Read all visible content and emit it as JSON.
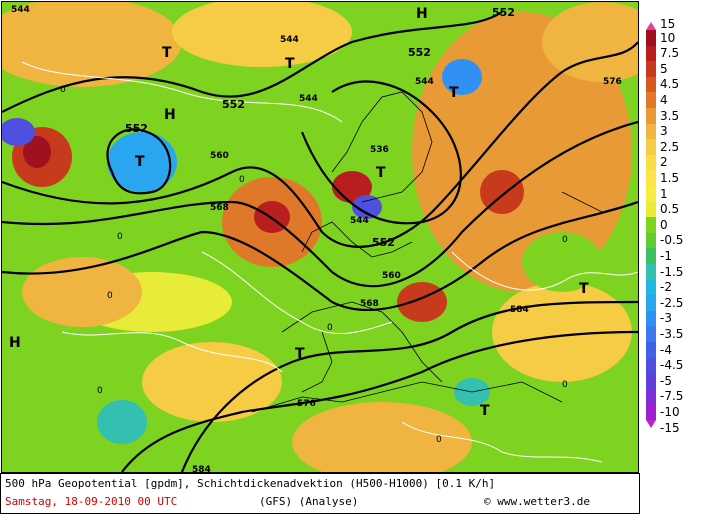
{
  "map": {
    "high_label": "H",
    "low_label": "T",
    "contour_labels": [
      "552",
      "552",
      "552",
      "552",
      "552",
      "544",
      "544",
      "544",
      "544",
      "544",
      "536",
      "560",
      "560",
      "568",
      "568",
      "576",
      "576",
      "584",
      "584"
    ],
    "advection_zero_label": "0"
  },
  "colorbar": {
    "labels": [
      "15",
      "10",
      "7.5",
      "5",
      "4.5",
      "4",
      "3.5",
      "3",
      "2.5",
      "2",
      "1.5",
      "1",
      "0.5",
      "0",
      "-0.5",
      "-1",
      "-1.5",
      "-2",
      "-2.5",
      "-3",
      "-3.5",
      "-4",
      "-4.5",
      "-5",
      "-7.5",
      "-10",
      "-15"
    ],
    "colors": [
      "#e0409a",
      "#a01020",
      "#b81e1e",
      "#c83a1c",
      "#d65a1e",
      "#e0782a",
      "#e89a36",
      "#f0b440",
      "#f6cc44",
      "#fadc44",
      "#fce448",
      "#f8ec40",
      "#e8ec38",
      "#7ed321",
      "#60cc30",
      "#3ec060",
      "#34c0b0",
      "#20b8e0",
      "#2aa6f0",
      "#3090f4",
      "#3c78f0",
      "#4062e8",
      "#5050e0",
      "#6040dc",
      "#8030d8",
      "#a020d0",
      "#c020c8"
    ]
  },
  "footer": {
    "title": "500 hPa Geopotential [gpdm], Schichtdickenadvektion (H500-H1000) [0.1 K/h]",
    "date": "Samstag, 18-09-2010  00 UTC",
    "model": "(GFS)  (Analyse)",
    "copyright": "© www.wetter3.de"
  }
}
